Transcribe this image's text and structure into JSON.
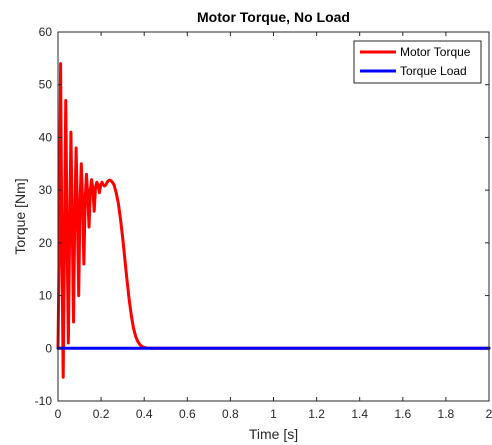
{
  "chart_data": {
    "type": "line",
    "title": "Motor Torque, No Load",
    "xlabel": "Time [s]",
    "ylabel": "Torque [Nm]",
    "xlim": [
      0,
      2
    ],
    "ylim": [
      -10,
      60
    ],
    "xticks": [
      0,
      0.2,
      0.4,
      0.6,
      0.8,
      1,
      1.2,
      1.4,
      1.6,
      1.8,
      2
    ],
    "xtick_labels": [
      "0",
      "0.2",
      "0.4",
      "0.6",
      "0.8",
      "1",
      "1.2",
      "1.4",
      "1.6",
      "1.8",
      "2"
    ],
    "yticks": [
      -10,
      0,
      10,
      20,
      30,
      40,
      50,
      60
    ],
    "ytick_labels": [
      "-10",
      "0",
      "10",
      "20",
      "30",
      "40",
      "50",
      "60"
    ],
    "grid": false,
    "legend_position": "top-right",
    "series": [
      {
        "name": "Motor Torque",
        "color": "#ff0000",
        "x": [
          0,
          0.006,
          0.012,
          0.018,
          0.024,
          0.03,
          0.036,
          0.042,
          0.048,
          0.054,
          0.06,
          0.066,
          0.072,
          0.078,
          0.084,
          0.09,
          0.096,
          0.102,
          0.108,
          0.114,
          0.12,
          0.126,
          0.132,
          0.138,
          0.144,
          0.15,
          0.156,
          0.162,
          0.168,
          0.174,
          0.18,
          0.186,
          0.192,
          0.198,
          0.204,
          0.21,
          0.216,
          0.222,
          0.228,
          0.234,
          0.24,
          0.246,
          0.252,
          0.26,
          0.27,
          0.28,
          0.29,
          0.3,
          0.31,
          0.32,
          0.33,
          0.34,
          0.35,
          0.36,
          0.37,
          0.38,
          0.39,
          0.4,
          0.41,
          0.42,
          0.43,
          0.44,
          0.45,
          0.46,
          0.47,
          0.48,
          0.49,
          0.5,
          0.52,
          0.54,
          0.56,
          0.6,
          2.0
        ],
        "y": [
          0,
          20,
          54,
          20,
          -5.5,
          20,
          47,
          22,
          1,
          22,
          41,
          24,
          5,
          25,
          38,
          26,
          10,
          27,
          35,
          28,
          16,
          28,
          33,
          29,
          23,
          30,
          32,
          30,
          26,
          30.5,
          31.5,
          31,
          29.5,
          31,
          31.5,
          31,
          30.8,
          31,
          31.5,
          31.8,
          31.9,
          31.8,
          31.5,
          31,
          29.5,
          27.5,
          24.5,
          21,
          17,
          13,
          9.3,
          6.3,
          3.9,
          2.3,
          1.3,
          0.7,
          0.35,
          0.15,
          0.06,
          0.02,
          0,
          0,
          0,
          0,
          0,
          0,
          0,
          0,
          0,
          0,
          0,
          0,
          0
        ]
      },
      {
        "name": "Torque Load",
        "color": "#0000ff",
        "x": [
          0,
          2
        ],
        "y": [
          0,
          0
        ]
      }
    ]
  }
}
